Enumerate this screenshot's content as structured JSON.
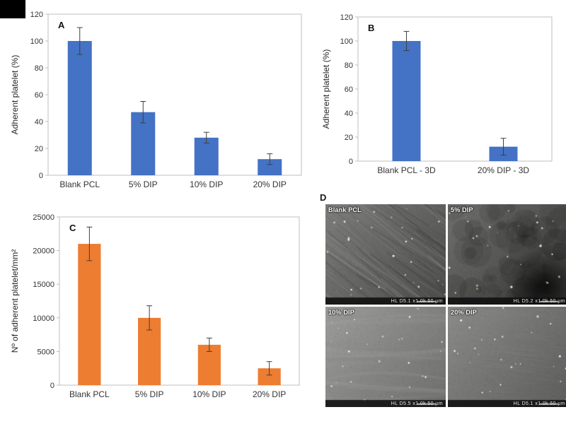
{
  "colors": {
    "bar_blue": "#4472C4",
    "bar_orange": "#ED7D31",
    "error_bar": "#3f3f3f",
    "plot_border": "#bfbfbf",
    "text": "#333333"
  },
  "chart_data": [
    {
      "type": "bar",
      "panel": "A",
      "title": "",
      "ylabel": "Adherent platelet (%)",
      "xlabel": "",
      "categories": [
        "Blank PCL",
        "5% DIP",
        "10% DIP",
        "20% DIP"
      ],
      "values": [
        100,
        47,
        28,
        12
      ],
      "errors": [
        10,
        8,
        4,
        4
      ],
      "ylim": [
        0,
        120
      ],
      "ytick_step": 20,
      "grid": false,
      "legend": "none",
      "color": "#4472C4"
    },
    {
      "type": "bar",
      "panel": "B",
      "title": "",
      "ylabel": "Adherent platelet (%)",
      "xlabel": "",
      "categories": [
        "Blank PCL - 3D",
        "20% DIP - 3D"
      ],
      "values": [
        100,
        12
      ],
      "errors": [
        8,
        7
      ],
      "ylim": [
        0,
        120
      ],
      "ytick_step": 20,
      "grid": false,
      "legend": "none",
      "color": "#4472C4"
    },
    {
      "type": "bar",
      "panel": "C",
      "title": "",
      "ylabel": "Nº of adherent platelet/mm²",
      "xlabel": "",
      "categories": [
        "Blank PCL",
        "5% DIP",
        "10% DIP",
        "20% DIP"
      ],
      "values": [
        21000,
        10000,
        6000,
        2500
      ],
      "errors": [
        2500,
        1800,
        1000,
        1000
      ],
      "ylim": [
        0,
        25000
      ],
      "ytick_step": 5000,
      "grid": false,
      "legend": "none",
      "color": "#ED7D31"
    }
  ],
  "panel_d": {
    "label": "D",
    "images": [
      {
        "label": "Blank PCL",
        "scale_text": "HL  D5.1  x1.0k   50 μm",
        "tones": [
          "#7d7d7b",
          "#4a4a48"
        ],
        "texture": "fibers",
        "blob": false
      },
      {
        "label": "5% DIP",
        "scale_text": "HL  D5.2  x1.0k   50 μm",
        "tones": [
          "#6e6e6c",
          "#3d3d3b"
        ],
        "texture": "mottled",
        "blob": true
      },
      {
        "label": "10% DIP",
        "scale_text": "HL  D5.5  x1.0k   50 μm",
        "tones": [
          "#9c9c9a",
          "#6e6e6c"
        ],
        "texture": "smooth",
        "blob": false
      },
      {
        "label": "20% DIP",
        "scale_text": "HL  D5.1  x1.0k   50 μm",
        "tones": [
          "#8b8b89",
          "#5c5c5a"
        ],
        "texture": "fine",
        "blob": false
      }
    ]
  }
}
